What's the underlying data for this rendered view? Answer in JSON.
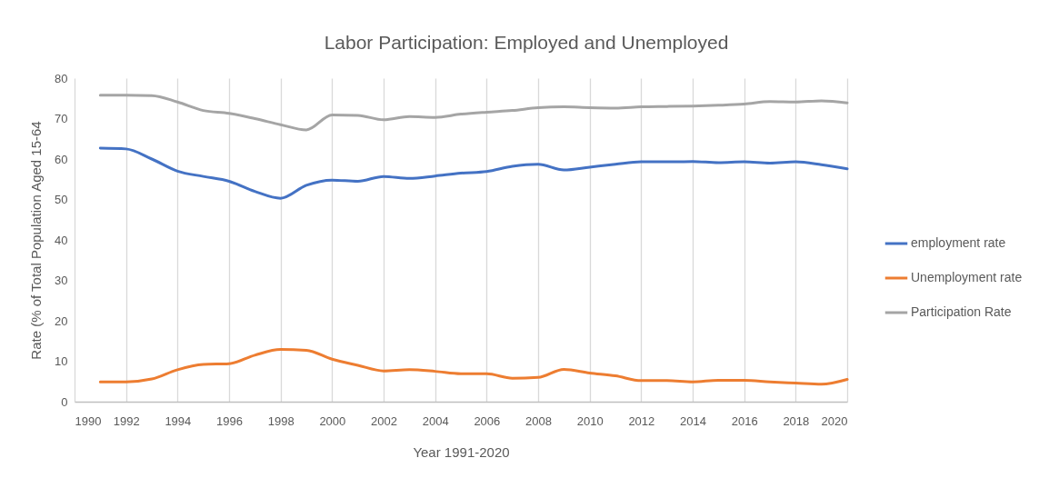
{
  "chart_data": {
    "type": "line",
    "title": "Labor Participation: Employed and Unemployed",
    "xlabel": "Year 1991-2020",
    "ylabel": "Rate (% of Total Population Aged 15-64",
    "x": [
      1991,
      1992,
      1993,
      1994,
      1995,
      1996,
      1997,
      1998,
      1999,
      2000,
      2001,
      2002,
      2003,
      2004,
      2005,
      2006,
      2007,
      2008,
      2009,
      2010,
      2011,
      2012,
      2013,
      2014,
      2015,
      2016,
      2017,
      2018,
      2019,
      2020
    ],
    "series": [
      {
        "name": "employment rate",
        "color": "#4472c4",
        "values": [
          62.7,
          62.5,
          60.0,
          57.0,
          55.7,
          54.5,
          52.0,
          50.3,
          53.5,
          54.8,
          54.5,
          55.7,
          55.2,
          55.8,
          56.5,
          56.9,
          58.2,
          58.7,
          57.3,
          58.0,
          58.7,
          59.3,
          59.3,
          59.4,
          59.1,
          59.3,
          59.0,
          59.3,
          58.6,
          57.6
        ]
      },
      {
        "name": "Unemployment rate",
        "color": "#ed7d31",
        "values": [
          4.9,
          4.9,
          5.6,
          7.9,
          9.2,
          9.4,
          11.5,
          12.9,
          12.7,
          10.5,
          9.0,
          7.6,
          7.9,
          7.5,
          6.9,
          6.9,
          5.8,
          6.0,
          8.0,
          7.1,
          6.4,
          5.2,
          5.2,
          4.9,
          5.3,
          5.3,
          4.9,
          4.6,
          4.3,
          5.5
        ]
      },
      {
        "name": "Participation Rate",
        "color": "#a5a5a5",
        "values": [
          75.8,
          75.8,
          75.7,
          74.1,
          72.0,
          71.3,
          70.0,
          68.5,
          67.2,
          70.9,
          70.8,
          69.7,
          70.5,
          70.3,
          71.1,
          71.6,
          72.0,
          72.7,
          72.9,
          72.7,
          72.6,
          72.9,
          73.0,
          73.1,
          73.3,
          73.6,
          74.2,
          74.1,
          74.4,
          73.9
        ]
      }
    ],
    "xlim": [
      1990,
      2020
    ],
    "xticks": [
      1990,
      1992,
      1994,
      1996,
      1998,
      2000,
      2002,
      2004,
      2006,
      2008,
      2010,
      2012,
      2014,
      2016,
      2018,
      2020
    ],
    "ylim": [
      0,
      80
    ],
    "yticks": [
      0,
      10,
      20,
      30,
      40,
      50,
      60,
      70,
      80
    ],
    "grid": "x",
    "legend": "right"
  }
}
